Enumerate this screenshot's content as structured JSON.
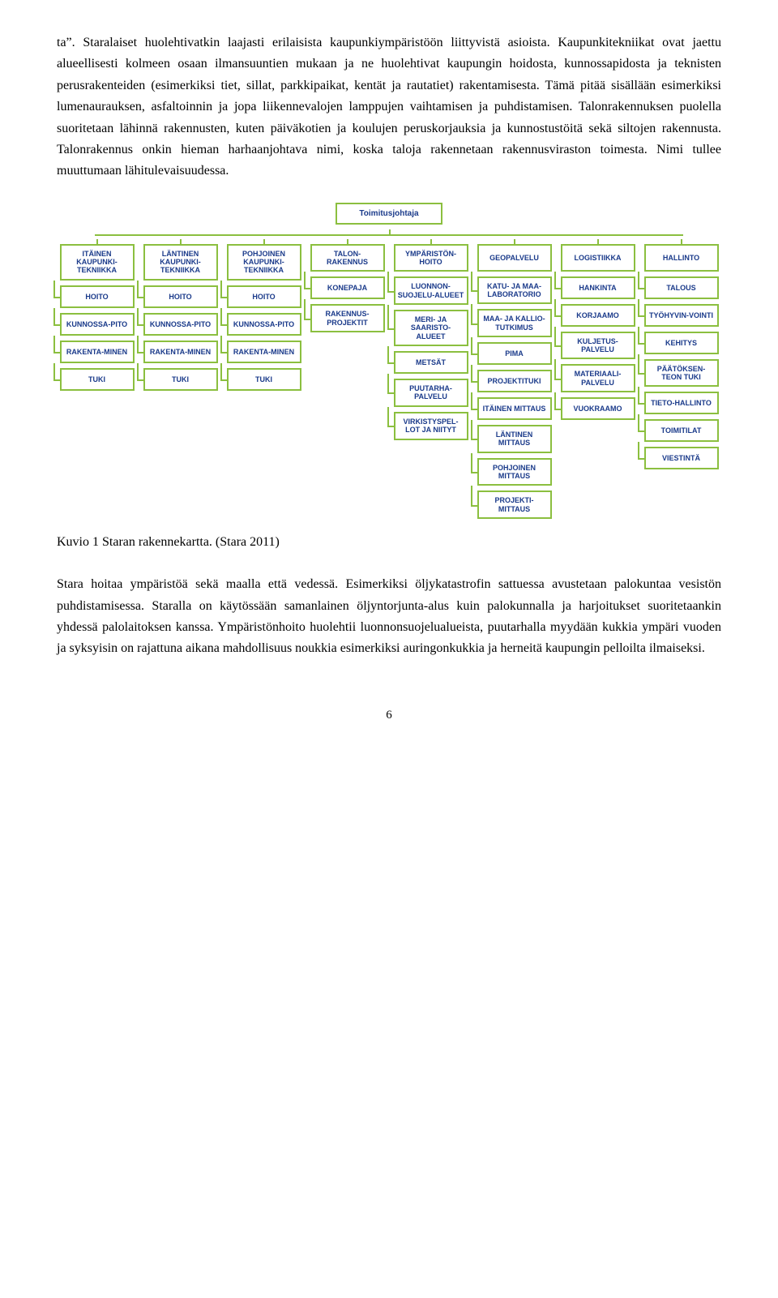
{
  "paragraphs": {
    "p1": "ta”. Staralaiset huolehtivatkin laajasti erilaisista kaupunkiympäristöön liittyvistä asioista. Kaupunkitekniikat ovat jaettu alueellisesti kolmeen osaan ilmansuuntien mukaan ja ne huolehtivat kaupungin hoidosta, kunnossapidosta ja teknisten perusrakenteiden (esimerkiksi tiet, sillat, parkkipaikat, kentät ja rautatiet) rakentamisesta. Tämä pitää sisällään esimerkiksi lumenaurauksen, asfaltoinnin ja jopa liikennevalojen lamppujen vaihtamisen ja puhdistamisen. Talonrakennuksen puolella suoritetaan lähinnä rakennusten, kuten päiväkotien ja koulujen peruskorjauksia ja kunnostustöitä sekä siltojen rakennusta. Talonrakennus onkin hieman harhaanjohtava nimi, koska taloja rakennetaan rakennusviraston toimesta. Nimi tullee muuttumaan lähitulevaisuudessa.",
    "caption": "Kuvio 1 Staran rakennekartta. (Stara 2011)",
    "p2": "Stara hoitaa ympäristöä sekä maalla että vedessä. Esimerkiksi öljykatastrofin sattuessa avustetaan palokuntaa vesistön puhdistamisessa. Staralla on käytössään samanlainen öljyntorjunta-alus kuin palokunnalla ja harjoitukset suoritetaankin yhdessä palolaitoksen kanssa. Ympäristönhoito huolehtii luonnonsuojelualueista, puutarhalla myydään kukkia ympäri vuoden ja syksyisin on rajattuna aikana mahdollisuus noukkia esimerkiksi auringonkukkia ja herneitä kaupungin pelloilta ilmaiseksi.",
    "page_number": "6"
  },
  "org_chart": {
    "type": "tree",
    "border_color": "#8bbf3f",
    "text_color": "#1a3a8a",
    "background_color": "#ffffff",
    "font_family": "Arial",
    "node_fontsize": 9,
    "root": "Toimitusjohtaja",
    "columns": [
      {
        "header": "ITÄINEN KAUPUNKI-TEKNIIKKA",
        "children": [
          "HOITO",
          "KUNNOSSA-PITO",
          "RAKENTA-MINEN",
          "TUKI"
        ]
      },
      {
        "header": "LÄNTINEN KAUPUNKI-TEKNIIKKA",
        "children": [
          "HOITO",
          "KUNNOSSA-PITO",
          "RAKENTA-MINEN",
          "TUKI"
        ]
      },
      {
        "header": "POHJOINEN KAUPUNKI-TEKNIIKKA",
        "children": [
          "HOITO",
          "KUNNOSSA-PITO",
          "RAKENTA-MINEN",
          "TUKI"
        ]
      },
      {
        "header": "TALON-RAKENNUS",
        "children": [
          "KONEPAJA",
          "RAKENNUS-PROJEKTIT"
        ]
      },
      {
        "header": "YMPÄRISTÖN-HOITO",
        "children": [
          "LUONNON-SUOJELU-ALUEET",
          "MERI- JA SAARISTO-ALUEET",
          "METSÄT",
          "PUUTARHA-PALVELU",
          "VIRKISTYSPEL-LOT JA NIITYT"
        ]
      },
      {
        "header": "GEOPALVELU",
        "children": [
          "KATU- JA MAA-LABORATORIO",
          "MAA- JA KALLIO-TUTKIMUS",
          "PIMA",
          "PROJEKTITUKI",
          "ITÄINEN MITTAUS",
          "LÄNTINEN MITTAUS",
          "POHJOINEN MITTAUS",
          "PROJEKTI-MITTAUS"
        ]
      },
      {
        "header": "LOGISTIIKKA",
        "children": [
          "HANKINTA",
          "KORJAAMO",
          "KULJETUS-PALVELU",
          "MATERIAALI-PALVELU",
          "VUOKRAAMO"
        ]
      },
      {
        "header": "HALLINTO",
        "children": [
          "TALOUS",
          "TYÖHYVIN-VOINTI",
          "KEHITYS",
          "PÄÄTÖKSEN-TEON TUKI",
          "TIETO-HALLINTO",
          "TOIMITILAT",
          "VIESTINTÄ"
        ]
      }
    ]
  }
}
